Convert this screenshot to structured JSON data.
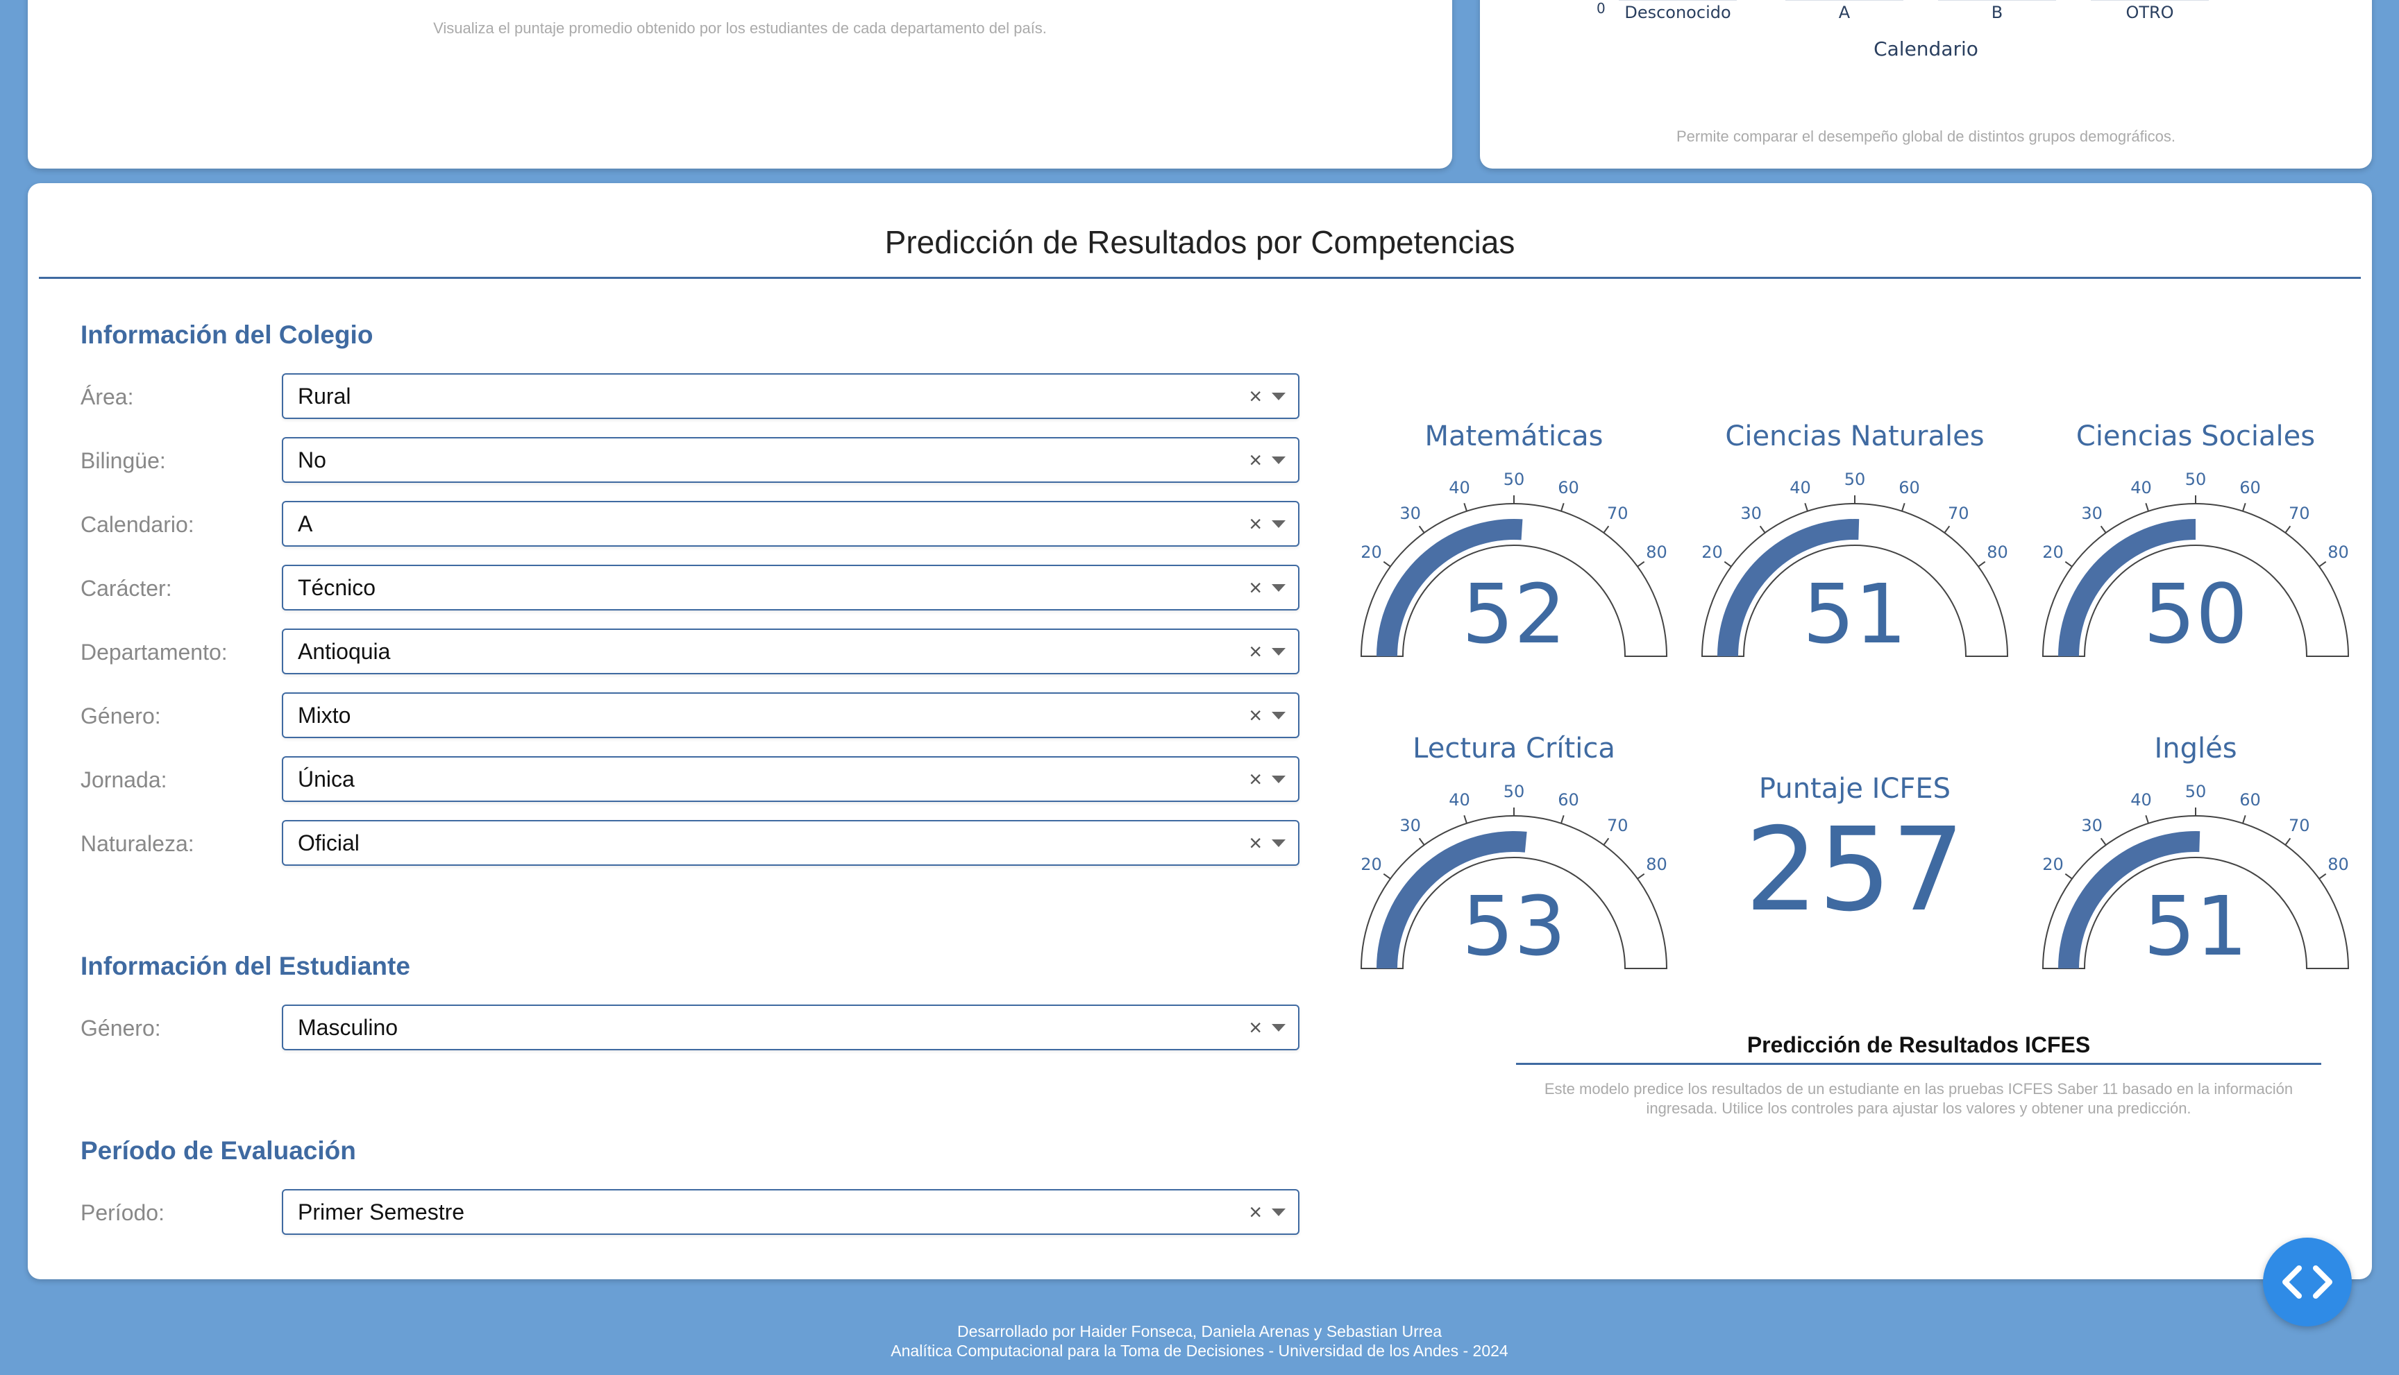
{
  "map_card": {
    "hint": "Visualiza el puntaje promedio obtenido por los estudiantes de cada departamento del país."
  },
  "calendar_card": {
    "y_tick": "0",
    "categories": [
      "Desconocido",
      "A",
      "B",
      "OTRO"
    ],
    "x_label": "Calendario",
    "hint": "Permite comparar el desempeño global de distintos grupos demográficos."
  },
  "prediction": {
    "title": "Predicción de Resultados por Competencias",
    "school_section": {
      "title": "Información del Colegio",
      "fields": [
        {
          "label": "Área:",
          "value": "Rural"
        },
        {
          "label": "Bilingüe:",
          "value": "No"
        },
        {
          "label": "Calendario:",
          "value": "A"
        },
        {
          "label": "Carácter:",
          "value": "Técnico"
        },
        {
          "label": "Departamento:",
          "value": "Antioquia"
        },
        {
          "label": "Género:",
          "value": "Mixto"
        },
        {
          "label": "Jornada:",
          "value": "Única"
        },
        {
          "label": "Naturaleza:",
          "value": "Oficial"
        }
      ]
    },
    "student_section": {
      "title": "Información del Estudiante",
      "fields": [
        {
          "label": "Género:",
          "value": "Masculino"
        }
      ]
    },
    "period_section": {
      "title": "Período de Evaluación",
      "fields": [
        {
          "label": "Período:",
          "value": "Primer Semestre"
        }
      ]
    },
    "clear_symbol": "×",
    "gauge_ticks": [
      "20",
      "30",
      "40",
      "50",
      "60",
      "70",
      "80"
    ],
    "gauge_range": [
      0,
      100
    ],
    "gauges": [
      {
        "title": "Matemáticas",
        "value": 52
      },
      {
        "title": "Ciencias Naturales",
        "value": 51
      },
      {
        "title": "Ciencias Sociales",
        "value": 50
      },
      {
        "title": "Lectura Crítica",
        "value": 53
      },
      {
        "title": "Inglés",
        "value": 51
      }
    ],
    "total": {
      "title": "Puntaje ICFES",
      "value": "257"
    },
    "results": {
      "title": "Predicción de Resultados ICFES",
      "description_line1": "Este modelo predice los resultados de un estudiante en las pruebas ICFES Saber 11 basado en la información",
      "description_line2": "ingresada. Utilice los controles para ajustar los valores y obtener una predicción."
    }
  },
  "footer": {
    "line1": "Desarrollado por Haider Fonseca, Daniela Arenas y Sebastian Urrea",
    "line2": "Analítica Computacional para la Toma de Decisiones - Universidad de los Andes - 2024"
  },
  "colors": {
    "background": "#6a9fd4",
    "accent": "#3f6aa1",
    "gauge_bar": "#4a6fa5",
    "fab": "#2f8be6"
  },
  "icons": {
    "fab": "code-brackets-icon",
    "clear": "clear-icon",
    "dropdown": "chevron-down-icon"
  }
}
